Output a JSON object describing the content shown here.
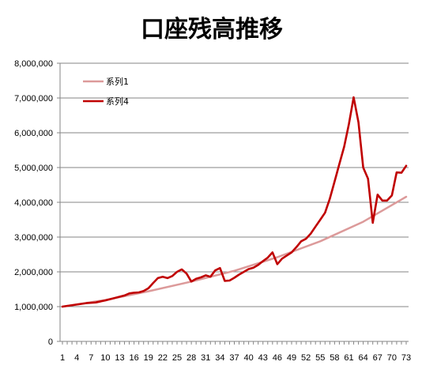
{
  "chart_data": {
    "type": "line",
    "title": "口座残高推移",
    "xlabel": "",
    "ylabel": "",
    "ylim": [
      0,
      8000000
    ],
    "yticks": [
      "0",
      "1,000,000",
      "2,000,000",
      "3,000,000",
      "4,000,000",
      "5,000,000",
      "6,000,000",
      "7,000,000",
      "8,000,000"
    ],
    "xticks": [
      "1",
      "4",
      "7",
      "10",
      "13",
      "16",
      "19",
      "22",
      "25",
      "28",
      "31",
      "34",
      "37",
      "40",
      "43",
      "46",
      "49",
      "52",
      "55",
      "58",
      "61",
      "64",
      "67",
      "70",
      "73"
    ],
    "grid": "horizontal",
    "legend_position": "top-left",
    "series": [
      {
        "name": "系列1",
        "color": "#dc9a9a",
        "x": [
          1,
          10,
          19,
          28,
          37,
          46,
          55,
          64,
          73
        ],
        "values": [
          1000000,
          1190000,
          1440000,
          1720000,
          2030000,
          2420000,
          2880000,
          3440000,
          4160000
        ]
      },
      {
        "name": "系列4",
        "color": "#c00000",
        "x": [
          1,
          2,
          4,
          6,
          8,
          10,
          12,
          14,
          15,
          16,
          17,
          18,
          19,
          20,
          21,
          22,
          23,
          24,
          25,
          26,
          27,
          28,
          29,
          30,
          31,
          32,
          33,
          34,
          35,
          36,
          37,
          38,
          39,
          40,
          41,
          42,
          43,
          44,
          45,
          46,
          47,
          48,
          49,
          50,
          51,
          52,
          53,
          54,
          55,
          56,
          57,
          58,
          59,
          60,
          61,
          62,
          63,
          64,
          65,
          66,
          67,
          68,
          69,
          70,
          71,
          72,
          73
        ],
        "values": [
          1000000,
          1020000,
          1060000,
          1100000,
          1120000,
          1180000,
          1250000,
          1320000,
          1380000,
          1400000,
          1410000,
          1450000,
          1530000,
          1680000,
          1820000,
          1860000,
          1820000,
          1880000,
          2000000,
          2070000,
          1950000,
          1720000,
          1800000,
          1840000,
          1900000,
          1860000,
          2040000,
          2110000,
          1740000,
          1750000,
          1830000,
          1920000,
          2000000,
          2080000,
          2120000,
          2200000,
          2310000,
          2410000,
          2560000,
          2220000,
          2380000,
          2470000,
          2560000,
          2710000,
          2880000,
          2950000,
          3100000,
          3300000,
          3500000,
          3700000,
          4100000,
          4600000,
          5100000,
          5600000,
          6250000,
          7020000,
          6300000,
          5000000,
          4680000,
          3410000,
          4220000,
          4050000,
          4050000,
          4200000,
          4860000,
          4850000,
          5050000
        ]
      }
    ]
  }
}
